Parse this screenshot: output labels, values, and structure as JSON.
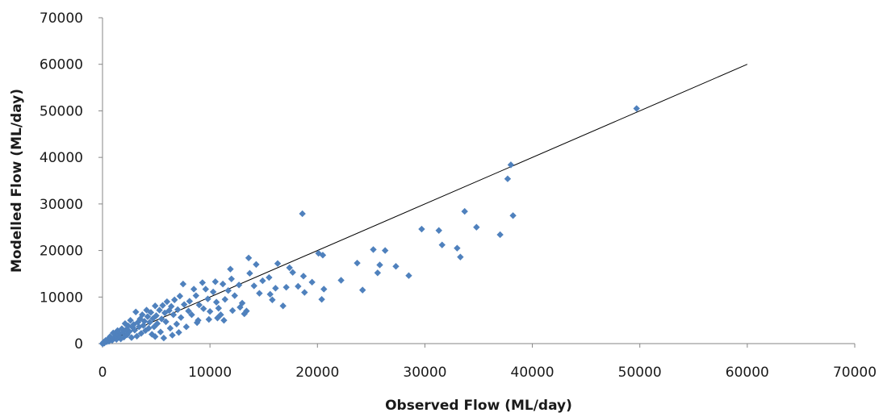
{
  "chart_data": {
    "type": "scatter",
    "title": "",
    "xlabel": "Observed Flow (ML/day)",
    "ylabel": "Modelled Flow (ML/day)",
    "xlim": [
      0,
      70000
    ],
    "ylim": [
      0,
      70000
    ],
    "xticks": [
      "0",
      "10000",
      "20000",
      "30000",
      "40000",
      "50000",
      "60000",
      "70000"
    ],
    "yticks": [
      "0",
      "10000",
      "20000",
      "30000",
      "40000",
      "50000",
      "60000",
      "70000"
    ],
    "grid": false,
    "legend": "none",
    "marker_color": "#4f81bd",
    "line_color": "#000000",
    "reference_line": {
      "x": [
        0,
        60000
      ],
      "y": [
        0,
        60000
      ]
    },
    "series": [
      {
        "points": [
          [
            49700,
            50500
          ],
          [
            38000,
            38400
          ],
          [
            37700,
            35400
          ],
          [
            38200,
            27500
          ],
          [
            37000,
            23400
          ],
          [
            33700,
            28400
          ],
          [
            34800,
            25000
          ],
          [
            31300,
            24300
          ],
          [
            33300,
            18600
          ],
          [
            33000,
            20500
          ],
          [
            31600,
            21200
          ],
          [
            29700,
            24600
          ],
          [
            28500,
            14600
          ],
          [
            27300,
            16600
          ],
          [
            26300,
            20000
          ],
          [
            25200,
            20200
          ],
          [
            25600,
            15200
          ],
          [
            25800,
            16900
          ],
          [
            24200,
            11500
          ],
          [
            23700,
            17300
          ],
          [
            22200,
            13600
          ],
          [
            20600,
            11700
          ],
          [
            20400,
            9500
          ],
          [
            20100,
            19400
          ],
          [
            20500,
            19000
          ],
          [
            18600,
            27900
          ],
          [
            19500,
            13200
          ],
          [
            18800,
            11000
          ],
          [
            18200,
            12300
          ],
          [
            18700,
            14500
          ],
          [
            17700,
            15300
          ],
          [
            17100,
            12100
          ],
          [
            17400,
            16300
          ],
          [
            16300,
            17200
          ],
          [
            16800,
            8100
          ],
          [
            16100,
            11900
          ],
          [
            15800,
            9400
          ],
          [
            15500,
            14200
          ],
          [
            15600,
            10600
          ],
          [
            14900,
            13500
          ],
          [
            14600,
            10800
          ],
          [
            14300,
            17000
          ],
          [
            14100,
            12400
          ],
          [
            13700,
            15100
          ],
          [
            13600,
            18400
          ],
          [
            13400,
            7000
          ],
          [
            13200,
            6400
          ],
          [
            13000,
            8700
          ],
          [
            12700,
            12600
          ],
          [
            12300,
            10300
          ],
          [
            12000,
            13900
          ],
          [
            11900,
            16000
          ],
          [
            11700,
            11400
          ],
          [
            11400,
            9500
          ],
          [
            11200,
            12800
          ],
          [
            11000,
            6200
          ],
          [
            10800,
            7600
          ],
          [
            10600,
            8900
          ],
          [
            10500,
            13300
          ],
          [
            10300,
            11100
          ],
          [
            10000,
            6900
          ],
          [
            9800,
            9600
          ],
          [
            9600,
            11700
          ],
          [
            9400,
            7500
          ],
          [
            9300,
            13100
          ],
          [
            9000,
            8300
          ],
          [
            8800,
            4500
          ],
          [
            8700,
            10300
          ],
          [
            8500,
            11700
          ],
          [
            8300,
            6200
          ],
          [
            8100,
            9100
          ],
          [
            8000,
            7000
          ],
          [
            7800,
            3600
          ],
          [
            7600,
            8400
          ],
          [
            7500,
            12800
          ],
          [
            7300,
            5600
          ],
          [
            7200,
            10200
          ],
          [
            7000,
            7300
          ],
          [
            6900,
            4200
          ],
          [
            6700,
            9400
          ],
          [
            6600,
            6200
          ],
          [
            6400,
            8000
          ],
          [
            6300,
            3300
          ],
          [
            6200,
            7100
          ],
          [
            6000,
            9000
          ],
          [
            5900,
            4700
          ],
          [
            5800,
            6600
          ],
          [
            5600,
            8200
          ],
          [
            5500,
            5300
          ],
          [
            5400,
            2500
          ],
          [
            5300,
            7200
          ],
          [
            5100,
            4300
          ],
          [
            5000,
            6000
          ],
          [
            4900,
            8100
          ],
          [
            4800,
            3600
          ],
          [
            4700,
            5400
          ],
          [
            4600,
            2000
          ],
          [
            4500,
            6700
          ],
          [
            4400,
            4600
          ],
          [
            4300,
            3300
          ],
          [
            4200,
            5800
          ],
          [
            4100,
            7200
          ],
          [
            4000,
            2800
          ],
          [
            3900,
            4800
          ],
          [
            3800,
            3900
          ],
          [
            3700,
            6200
          ],
          [
            3600,
            2200
          ],
          [
            3500,
            5300
          ],
          [
            3400,
            3600
          ],
          [
            3300,
            4600
          ],
          [
            3200,
            1600
          ],
          [
            3100,
            6800
          ],
          [
            3000,
            2900
          ],
          [
            2900,
            4100
          ],
          [
            2800,
            3500
          ],
          [
            2700,
            1300
          ],
          [
            2600,
            5000
          ],
          [
            2500,
            2600
          ],
          [
            2400,
            3800
          ],
          [
            2300,
            1900
          ],
          [
            2200,
            3000
          ],
          [
            2100,
            4300
          ],
          [
            2000,
            1400
          ],
          [
            1900,
            2400
          ],
          [
            1800,
            3200
          ],
          [
            1700,
            1000
          ],
          [
            1600,
            2100
          ],
          [
            1500,
            1600
          ],
          [
            1400,
            2800
          ],
          [
            1300,
            900
          ],
          [
            1200,
            1900
          ],
          [
            1100,
            1300
          ],
          [
            1000,
            2300
          ],
          [
            900,
            700
          ],
          [
            800,
            1200
          ],
          [
            700,
            1500
          ],
          [
            600,
            500
          ],
          [
            500,
            900
          ],
          [
            400,
            400
          ],
          [
            300,
            700
          ],
          [
            200,
            200
          ],
          [
            100,
            300
          ],
          [
            50,
            50
          ],
          [
            0,
            0
          ],
          [
            150,
            100
          ],
          [
            7100,
            2400
          ],
          [
            8900,
            5000
          ],
          [
            9900,
            5200
          ],
          [
            10700,
            5500
          ],
          [
            6500,
            1800
          ],
          [
            5700,
            1200
          ],
          [
            4900,
            1500
          ],
          [
            12100,
            7100
          ],
          [
            11300,
            5000
          ],
          [
            12800,
            7800
          ]
        ]
      }
    ]
  }
}
